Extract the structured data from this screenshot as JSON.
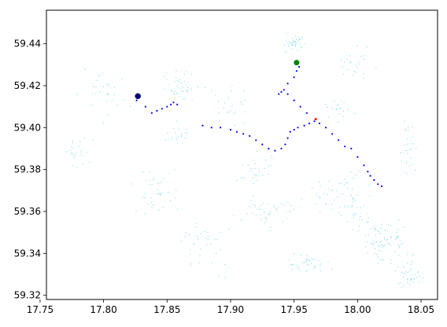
{
  "chart_data": {
    "type": "scatter",
    "title": "",
    "xlabel": "",
    "ylabel": "",
    "xlim": [
      17.755,
      18.063
    ],
    "ylim": [
      59.318,
      59.456
    ],
    "grid": false,
    "xticks": [
      17.75,
      17.8,
      17.85,
      17.9,
      17.95,
      18.0,
      18.05
    ],
    "yticks": [
      59.32,
      59.34,
      59.36,
      59.38,
      59.4,
      59.42,
      59.44
    ],
    "xtick_labels": [
      "17.75",
      "17.80",
      "17.85",
      "17.90",
      "17.95",
      "18.00",
      "18.05"
    ],
    "ytick_labels": [
      "59.32",
      "59.34",
      "59.36",
      "59.38",
      "59.40",
      "59.42",
      "59.44"
    ],
    "colors": {
      "network": "#17becf",
      "route": "#0000ff",
      "start": "#008000",
      "end": "#000080",
      "marker": "#ff0000"
    },
    "route": {
      "x": [
        17.826,
        17.828,
        17.833,
        17.838,
        17.842,
        17.846,
        17.85,
        17.853,
        17.855,
        17.858,
        17.878,
        17.885,
        17.892,
        17.9,
        17.905,
        17.91,
        17.915,
        17.92,
        17.925,
        17.93,
        17.935,
        17.94,
        17.943,
        17.945,
        17.947,
        17.95,
        17.953,
        17.958,
        17.962,
        17.966,
        17.97,
        17.975,
        17.98,
        17.985,
        17.99,
        17.995,
        18.0,
        18.005,
        18.008,
        18.01,
        18.013,
        18.016,
        18.019,
        17.96,
        17.955,
        17.95,
        17.945,
        17.942,
        17.94,
        17.938,
        17.945,
        17.95,
        17.952,
        17.954
      ],
      "y": [
        59.413,
        59.415,
        59.41,
        59.407,
        59.408,
        59.409,
        59.41,
        59.411,
        59.412,
        59.411,
        59.401,
        59.4,
        59.4,
        59.399,
        59.398,
        59.397,
        59.396,
        59.394,
        59.392,
        59.39,
        59.389,
        59.39,
        59.392,
        59.395,
        59.398,
        59.399,
        59.4,
        59.401,
        59.402,
        59.403,
        59.402,
        59.4,
        59.397,
        59.394,
        59.391,
        59.39,
        59.386,
        59.382,
        59.379,
        59.377,
        59.375,
        59.373,
        59.372,
        59.407,
        59.41,
        59.413,
        59.416,
        59.418,
        59.417,
        59.416,
        59.421,
        59.424,
        59.427,
        59.429
      ]
    },
    "start_point": {
      "x": 17.952,
      "y": 59.431
    },
    "end_point": {
      "x": 17.827,
      "y": 59.415
    },
    "marker_point": {
      "x": 17.967,
      "y": 59.404
    },
    "network_clusters": [
      {
        "x": 17.95,
        "y": 59.44,
        "n": 40,
        "sx": 0.012,
        "sy": 0.004
      },
      {
        "x": 17.86,
        "y": 59.42,
        "n": 45,
        "sx": 0.01,
        "sy": 0.006
      },
      {
        "x": 17.8,
        "y": 59.415,
        "n": 30,
        "sx": 0.02,
        "sy": 0.01
      },
      {
        "x": 17.78,
        "y": 59.39,
        "n": 25,
        "sx": 0.01,
        "sy": 0.006
      },
      {
        "x": 17.84,
        "y": 59.37,
        "n": 40,
        "sx": 0.015,
        "sy": 0.01
      },
      {
        "x": 17.88,
        "y": 59.345,
        "n": 35,
        "sx": 0.02,
        "sy": 0.012
      },
      {
        "x": 17.93,
        "y": 59.36,
        "n": 45,
        "sx": 0.02,
        "sy": 0.008
      },
      {
        "x": 17.99,
        "y": 59.365,
        "n": 70,
        "sx": 0.02,
        "sy": 0.012
      },
      {
        "x": 18.02,
        "y": 59.345,
        "n": 80,
        "sx": 0.015,
        "sy": 0.01
      },
      {
        "x": 18.04,
        "y": 59.33,
        "n": 40,
        "sx": 0.01,
        "sy": 0.008
      },
      {
        "x": 17.96,
        "y": 59.335,
        "n": 40,
        "sx": 0.015,
        "sy": 0.004
      },
      {
        "x": 18.04,
        "y": 59.39,
        "n": 30,
        "sx": 0.006,
        "sy": 0.012
      },
      {
        "x": 18.0,
        "y": 59.43,
        "n": 25,
        "sx": 0.015,
        "sy": 0.008
      },
      {
        "x": 17.9,
        "y": 59.41,
        "n": 25,
        "sx": 0.015,
        "sy": 0.01
      },
      {
        "x": 17.92,
        "y": 59.38,
        "n": 30,
        "sx": 0.012,
        "sy": 0.008
      },
      {
        "x": 17.86,
        "y": 59.395,
        "n": 20,
        "sx": 0.01,
        "sy": 0.006
      },
      {
        "x": 17.985,
        "y": 59.41,
        "n": 20,
        "sx": 0.01,
        "sy": 0.006
      }
    ]
  }
}
